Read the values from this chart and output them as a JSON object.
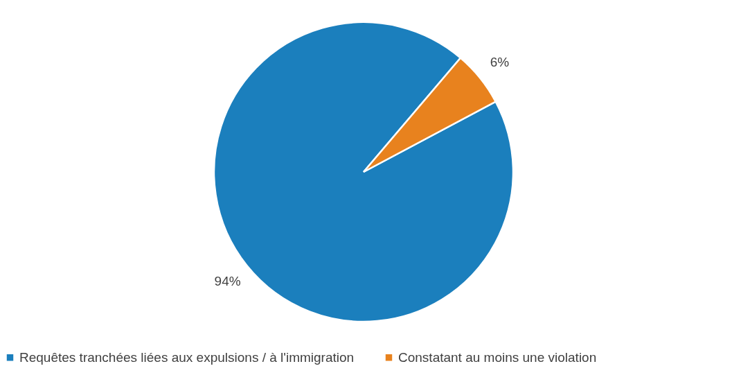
{
  "chart_data": {
    "type": "pie",
    "categories": [
      "Requêtes tranchées liées aux expulsions / à l'immigration",
      "Constatant au moins une violation"
    ],
    "values": [
      94,
      6
    ],
    "colors": [
      "#1b7fbd",
      "#e8821e"
    ],
    "value_labels": [
      "94%",
      "6%"
    ],
    "legend": "bottom"
  }
}
